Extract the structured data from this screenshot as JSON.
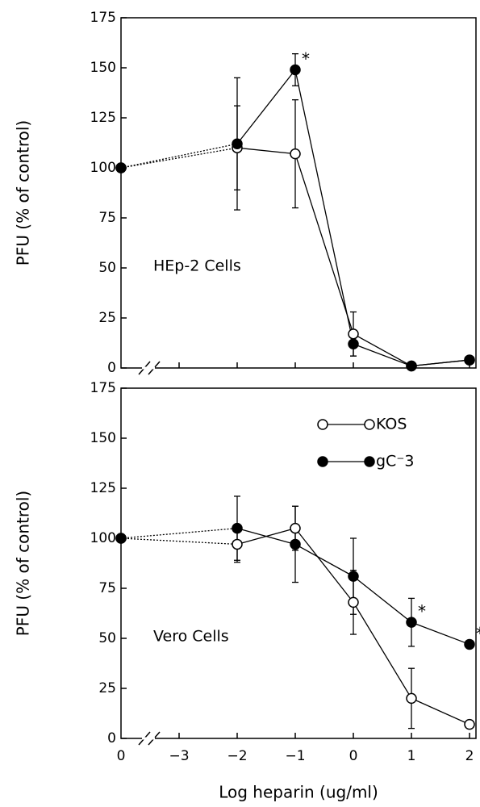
{
  "chart_data": [
    {
      "type": "line",
      "ylabel": "PFU (% of control)",
      "annotation": "HEp-2 Cells",
      "categories": [
        "0",
        "−3",
        "−2",
        "−1",
        "0",
        "1",
        "2"
      ],
      "ylim": [
        0,
        175
      ],
      "yticks": [
        0,
        25,
        50,
        75,
        100,
        125,
        150,
        175
      ],
      "series": [
        {
          "name": "KOS",
          "color": "#000000",
          "marker": "open",
          "values": [
            100,
            null,
            110,
            107,
            17,
            1,
            4
          ],
          "errors": [
            null,
            null,
            21,
            27,
            11,
            null,
            null
          ],
          "point_notes": [
            null,
            null,
            null,
            null,
            null,
            null,
            null
          ]
        },
        {
          "name": "gC⁻3",
          "color": "#000000",
          "marker": "filled",
          "values": [
            100,
            null,
            112,
            149,
            12,
            1,
            4
          ],
          "errors": [
            null,
            null,
            33,
            8,
            6,
            null,
            null
          ],
          "point_notes": [
            null,
            null,
            null,
            "*",
            null,
            null,
            null
          ]
        }
      ]
    },
    {
      "type": "line",
      "ylabel": "PFU (% of control)",
      "annotation": "Vero Cells",
      "xlabel": "Log heparin (ug/ml)",
      "categories": [
        "0",
        "−3",
        "−2",
        "−1",
        "0",
        "1",
        "2"
      ],
      "ylim": [
        0,
        175
      ],
      "yticks": [
        0,
        25,
        50,
        75,
        100,
        125,
        150,
        175
      ],
      "legend": "upper right",
      "series": [
        {
          "name": "KOS",
          "color": "#000000",
          "marker": "open",
          "values": [
            100,
            null,
            97,
            105,
            68,
            20,
            7
          ],
          "errors": [
            null,
            null,
            9,
            11,
            16,
            15,
            null
          ],
          "point_notes": [
            null,
            null,
            null,
            null,
            null,
            null,
            null
          ]
        },
        {
          "name": "gC⁻3",
          "color": "#000000",
          "marker": "filled",
          "values": [
            100,
            null,
            105,
            97,
            81,
            58,
            47
          ],
          "errors": [
            null,
            null,
            16,
            19,
            19,
            12,
            null
          ],
          "point_notes": [
            null,
            null,
            null,
            null,
            null,
            "*",
            "*"
          ]
        }
      ]
    }
  ]
}
